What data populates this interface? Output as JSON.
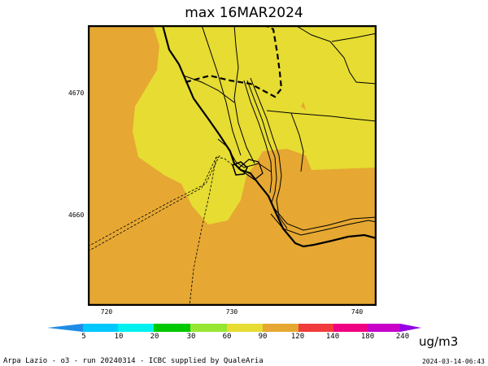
{
  "title": "max 16MAR2024",
  "map": {
    "y_ticks": [
      "4670",
      "4660"
    ],
    "x_ticks": [
      "720",
      "730",
      "740"
    ],
    "fill_colors": {
      "main": "#e6a832",
      "light": "#e6dc32"
    }
  },
  "colorbar": {
    "labels": [
      "5",
      "10",
      "20",
      "30",
      "60",
      "90",
      "120",
      "140",
      "180",
      "240"
    ],
    "colors": [
      "#1e8ce6",
      "#00c8ff",
      "#00f0f0",
      "#00c800",
      "#96e632",
      "#e6dc32",
      "#e6a832",
      "#f03c3c",
      "#f00082",
      "#c800c8",
      "#9600e6"
    ],
    "units": "ug/m3"
  },
  "footer": {
    "left": "Arpa Lazio - o3 - run 20240314 - ICBC supplied by QualeAria",
    "right": "2024-03-14-06:43"
  }
}
